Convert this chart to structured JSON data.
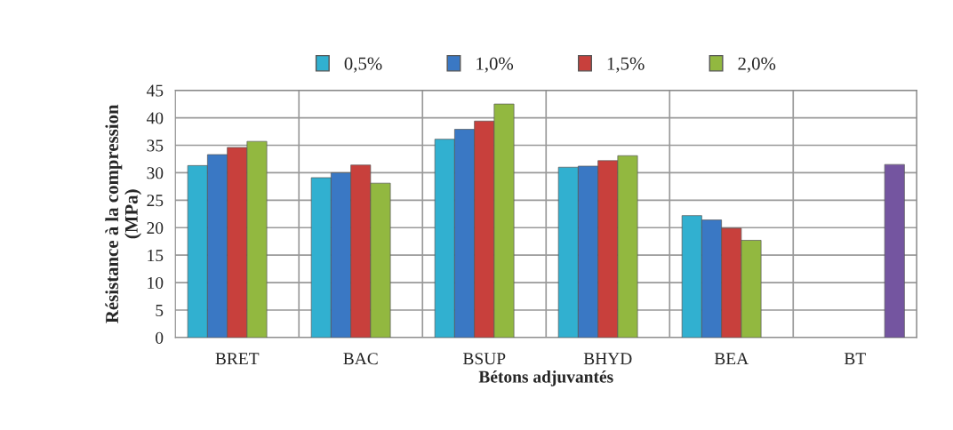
{
  "chart_data": {
    "type": "bar",
    "categories": [
      "BRET",
      "BAC",
      "BSUP",
      "BHYD",
      "BEA",
      "BT"
    ],
    "series": [
      {
        "name": "0,5%",
        "color": "#31b0d0",
        "values": [
          31.3,
          29.1,
          36.1,
          31.0,
          22.2,
          null
        ]
      },
      {
        "name": "1,0%",
        "color": "#3a78c4",
        "values": [
          33.3,
          30.0,
          37.9,
          31.2,
          21.4,
          null
        ]
      },
      {
        "name": "1,5%",
        "color": "#c8403c",
        "values": [
          34.6,
          31.4,
          39.4,
          32.2,
          19.9,
          null
        ]
      },
      {
        "name": "2,0%",
        "color": "#92b840",
        "values": [
          35.7,
          28.1,
          42.5,
          33.1,
          17.7,
          null
        ]
      },
      {
        "color": "#7455a0",
        "values": [
          null,
          null,
          null,
          null,
          null,
          31.5
        ]
      }
    ],
    "xlabel": "Bétons adjuvantés",
    "ylabel": "Résistance à la compression\n(MPa)",
    "ylim": [
      0,
      45
    ],
    "yticks": [
      0,
      5,
      10,
      15,
      20,
      25,
      30,
      35,
      40,
      45
    ],
    "grid": true,
    "legend": "top"
  }
}
